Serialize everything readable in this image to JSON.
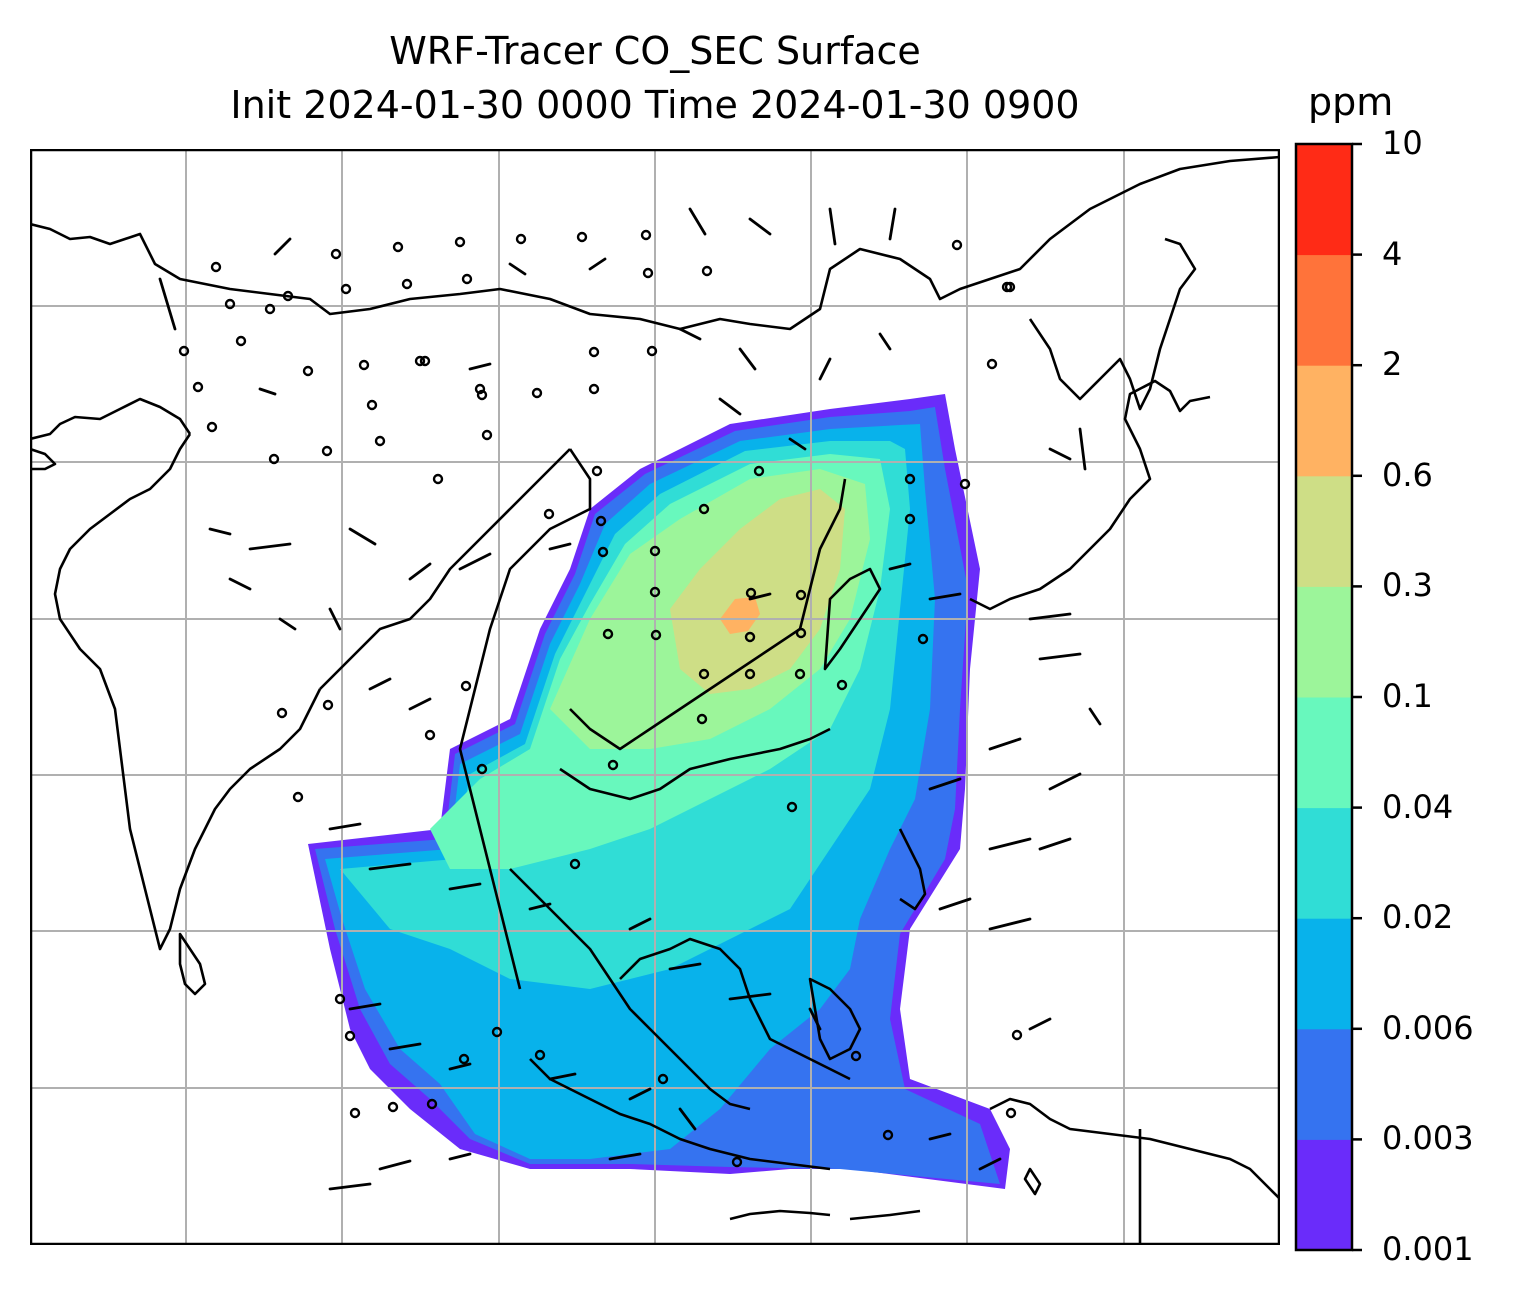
{
  "title_line1": "WRF-Tracer CO_SEC Surface",
  "title_line2": "Init 2024-01-30 0000 Time 2024-01-30 0900",
  "colorbar": {
    "unit": "ppm",
    "ticks": [
      "0.001",
      "0.003",
      "0.006",
      "0.02",
      "0.04",
      "0.1",
      "0.3",
      "0.6",
      "2",
      "4",
      "10"
    ],
    "colors": [
      "#6a2cfa",
      "#3573f0",
      "#08b2eb",
      "#30ddd6",
      "#68f8bd",
      "#9cf59a",
      "#cede86",
      "#ffb262",
      "#ff733a",
      "#ff2b16"
    ]
  },
  "map": {
    "background": "#ffffff",
    "grid_color": "#b0b0b0",
    "coastline_color": "#000000",
    "overlay": "wind-barbs"
  }
}
